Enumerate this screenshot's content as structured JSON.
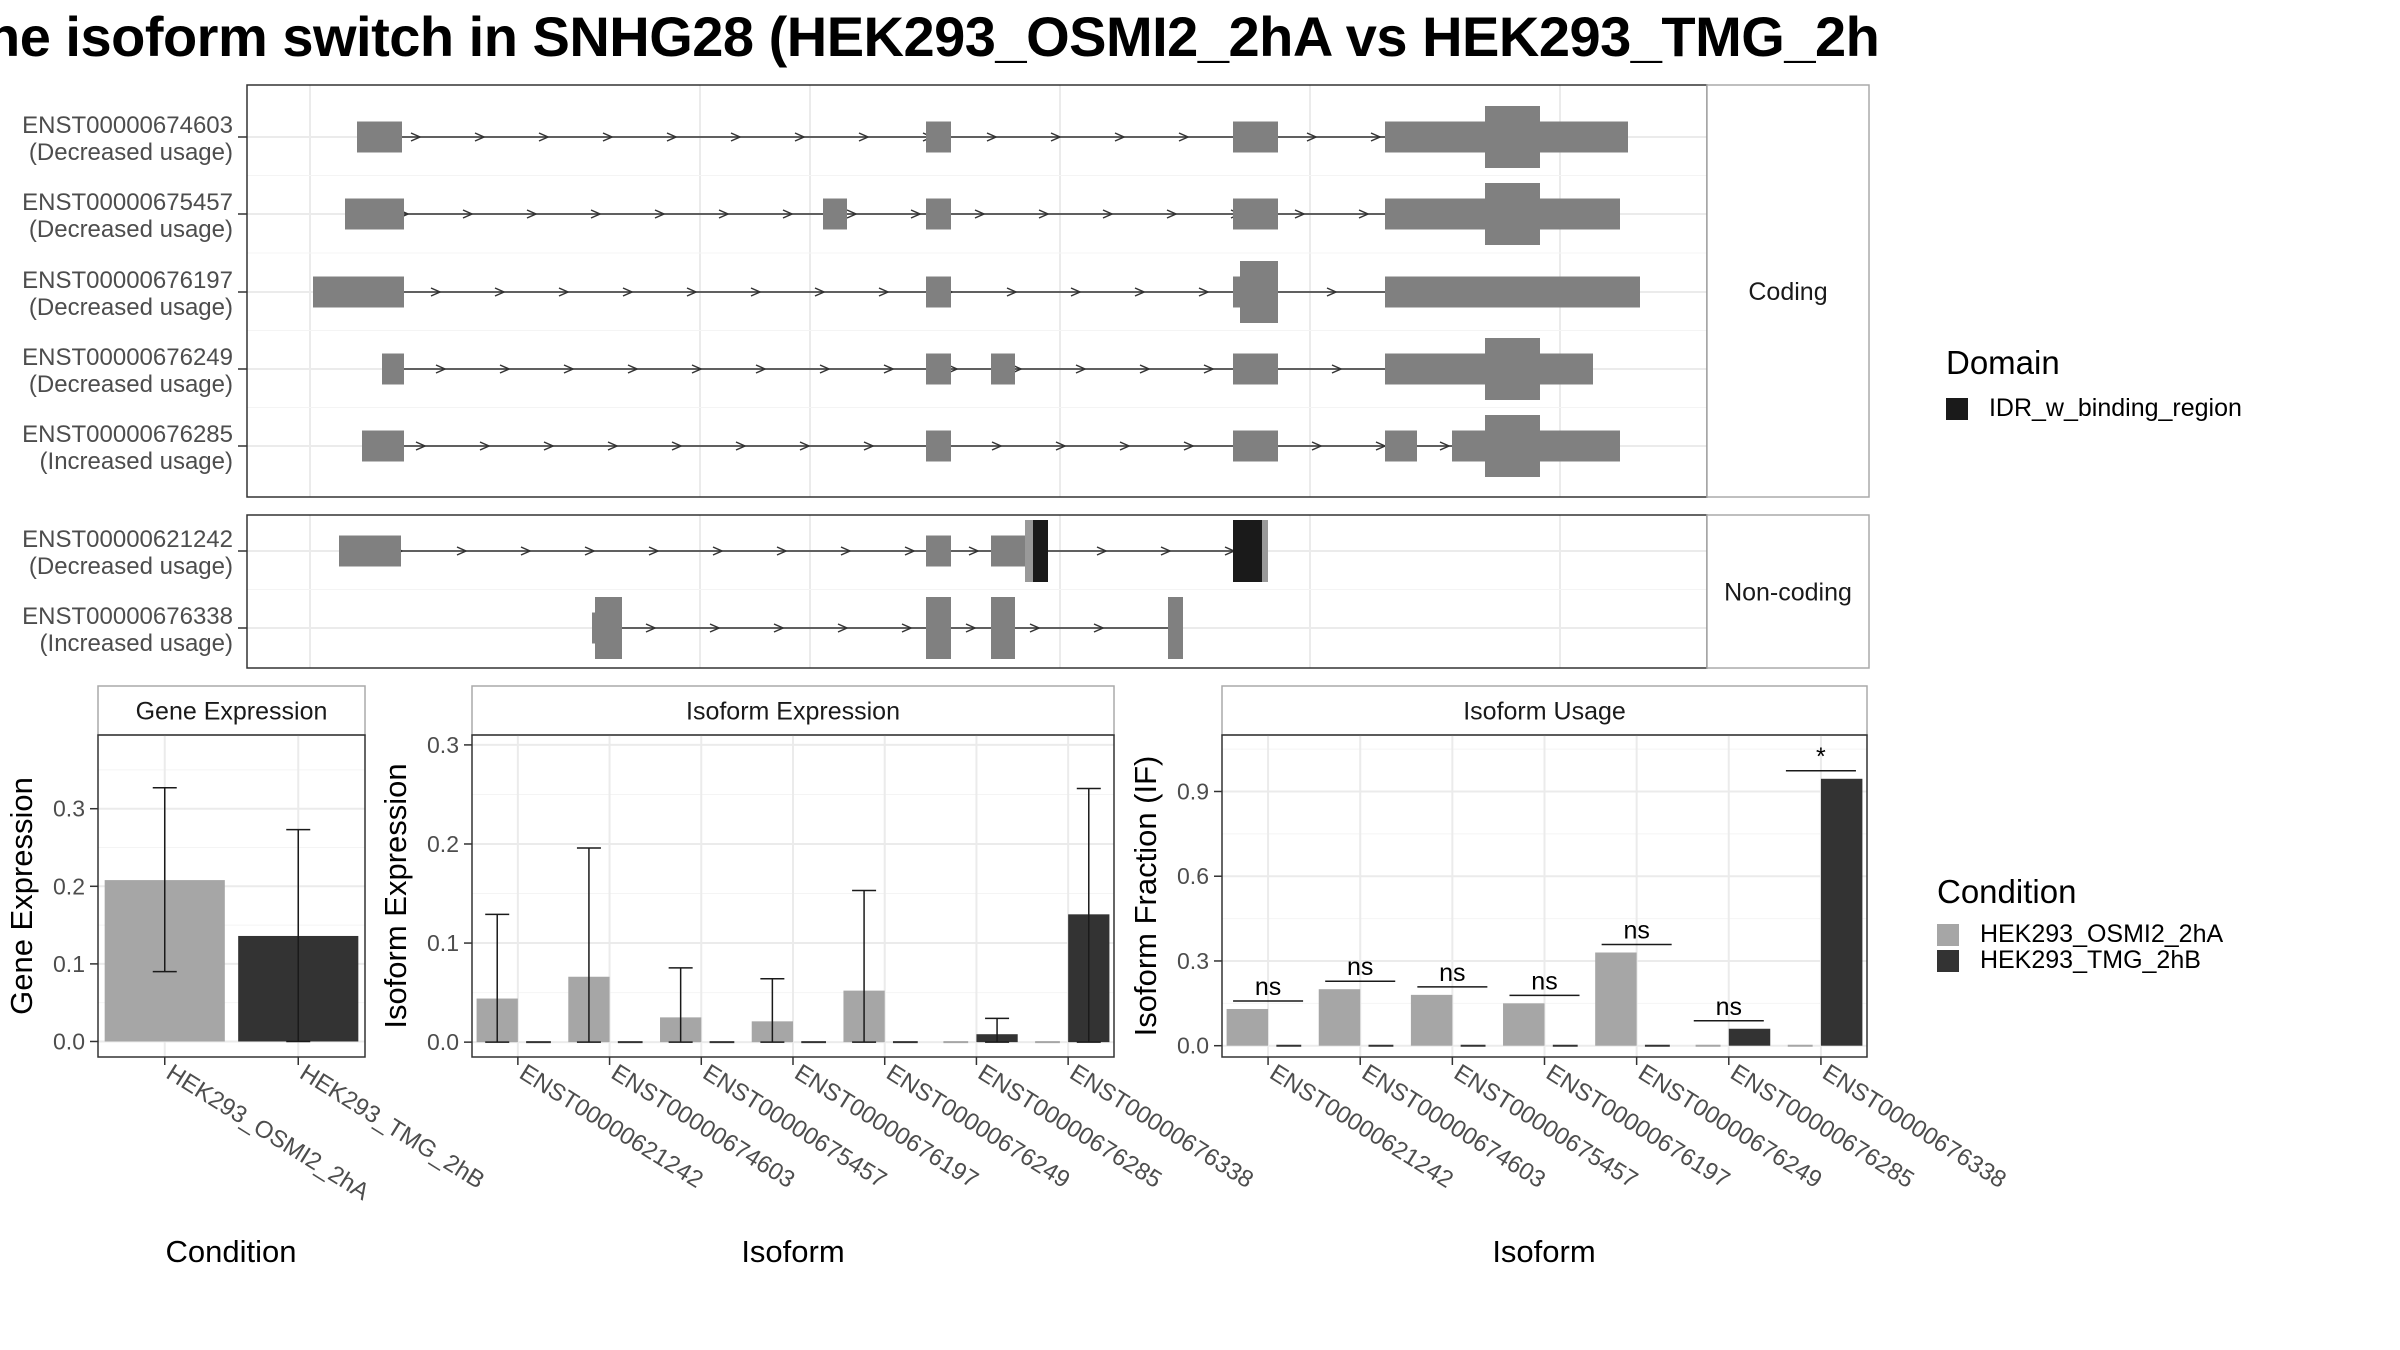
{
  "title": "he isoform switch in SNHG28 (HEK293_OSMI2_2hA vs HEK293_TMG_2h",
  "colors": {
    "exon": "#808080",
    "domain": "#1a1a1a",
    "cond_a": "#a6a6a6",
    "cond_b": "#333333"
  },
  "structure": {
    "coding_label": "Coding",
    "noncoding_label": "Non-coding",
    "coding": [
      {
        "id": "ENST00000674603",
        "usage": "(Decreased usage)"
      },
      {
        "id": "ENST00000675457",
        "usage": "(Decreased usage)"
      },
      {
        "id": "ENST00000676197",
        "usage": "(Decreased usage)"
      },
      {
        "id": "ENST00000676249",
        "usage": "(Decreased usage)"
      },
      {
        "id": "ENST00000676285",
        "usage": "(Increased usage)"
      }
    ],
    "noncoding": [
      {
        "id": "ENST00000621242",
        "usage": "(Decreased usage)"
      },
      {
        "id": "ENST00000676338",
        "usage": "(Increased usage)"
      }
    ]
  },
  "legend": {
    "domain_title": "Domain",
    "domain_items": [
      "IDR_w_binding_region"
    ],
    "condition_title": "Condition",
    "condition_items": [
      "HEK293_OSMI2_2hA",
      "HEK293_TMG_2hB"
    ]
  },
  "chart_data": [
    {
      "type": "bar",
      "title": "Gene Expression",
      "xlabel": "Condition",
      "ylabel": "Gene Expression",
      "categories": [
        "HEK293_OSMI2_2hA",
        "HEK293_TMG_2hB"
      ],
      "values": [
        0.208,
        0.136
      ],
      "error_low": [
        0.09,
        0.0
      ],
      "error_high": [
        0.327,
        0.273
      ],
      "yticks": [
        "0.0",
        "0.1",
        "0.2",
        "0.3"
      ],
      "ylim": [
        -0.02,
        0.395
      ]
    },
    {
      "type": "bar",
      "title": "Isoform Expression",
      "xlabel": "Isoform",
      "ylabel": "Isoform Expression",
      "categories": [
        "ENST00000621242",
        "ENST00000674603",
        "ENST00000675457",
        "ENST00000676197",
        "ENST00000676249",
        "ENST00000676285",
        "ENST00000676338"
      ],
      "series": [
        {
          "name": "HEK293_OSMI2_2hA",
          "values": [
            0.044,
            0.066,
            0.025,
            0.021,
            0.052,
            0.0,
            0.0
          ],
          "error_high": [
            0.129,
            0.196,
            0.075,
            0.064,
            0.153,
            0.0,
            0.0
          ]
        },
        {
          "name": "HEK293_TMG_2hB",
          "values": [
            0.0,
            0.0,
            0.0,
            0.0,
            0.0,
            0.008,
            0.129
          ],
          "error_high": [
            0.0,
            0.0,
            0.0,
            0.0,
            0.0,
            0.024,
            0.256
          ]
        }
      ],
      "yticks": [
        "0.0",
        "0.1",
        "0.2",
        "0.3"
      ],
      "ylim": [
        -0.015,
        0.31
      ]
    },
    {
      "type": "bar",
      "title": "Isoform Usage",
      "xlabel": "Isoform",
      "ylabel": "Isoform Fraction (IF)",
      "categories": [
        "ENST00000621242",
        "ENST00000674603",
        "ENST00000675457",
        "ENST00000676197",
        "ENST00000676249",
        "ENST00000676285",
        "ENST00000676338"
      ],
      "series": [
        {
          "name": "HEK293_OSMI2_2hA",
          "values": [
            0.13,
            0.2,
            0.18,
            0.15,
            0.33,
            0.0,
            0.0
          ]
        },
        {
          "name": "HEK293_TMG_2hB",
          "values": [
            0.0,
            0.0,
            0.0,
            0.0,
            0.0,
            0.06,
            0.945
          ]
        }
      ],
      "significance": [
        "ns",
        "ns",
        "ns",
        "ns",
        "ns",
        "ns",
        "*"
      ],
      "yticks": [
        "0.0",
        "0.3",
        "0.6",
        "0.9"
      ],
      "ylim": [
        -0.04,
        1.1
      ]
    }
  ]
}
